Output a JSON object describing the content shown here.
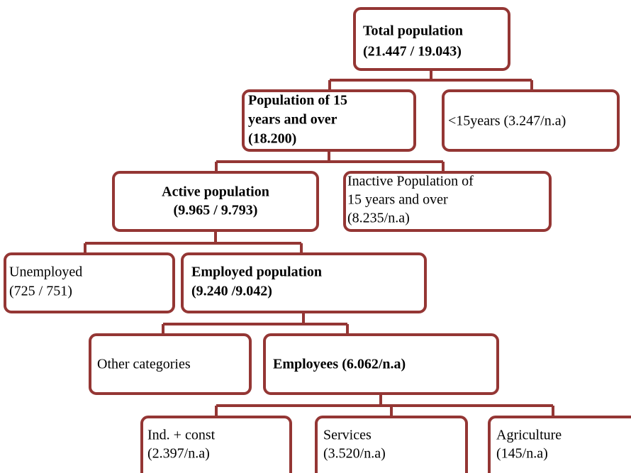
{
  "nodes": [
    {
      "lines": [
        "Total population",
        "(21.447 / 19.043)"
      ]
    },
    {
      "lines": [
        "Population of 15",
        "years and over",
        "(18.200)"
      ]
    },
    {
      "lines": [
        "<15years (3.247/n.a)"
      ]
    },
    {
      "lines": [
        "Active population",
        "(9.965 / 9.793)"
      ]
    },
    {
      "lines": [
        "Inactive Population of",
        "15 years and over",
        "(8.235/n.a)"
      ]
    },
    {
      "lines": [
        "Unemployed",
        "(725 / 751)"
      ]
    },
    {
      "lines": [
        "Employed population",
        "(9.240 /9.042)"
      ]
    },
    {
      "lines": [
        "Other categories"
      ]
    },
    {
      "lines": [
        "Employees (6.062/n.a)"
      ]
    },
    {
      "lines": [
        "Ind. + const",
        "(2.397/n.a)"
      ]
    },
    {
      "lines": [
        "Services",
        "(3.520/n.a)"
      ]
    },
    {
      "lines": [
        "Agriculture",
        "(145/n.a)"
      ]
    }
  ]
}
